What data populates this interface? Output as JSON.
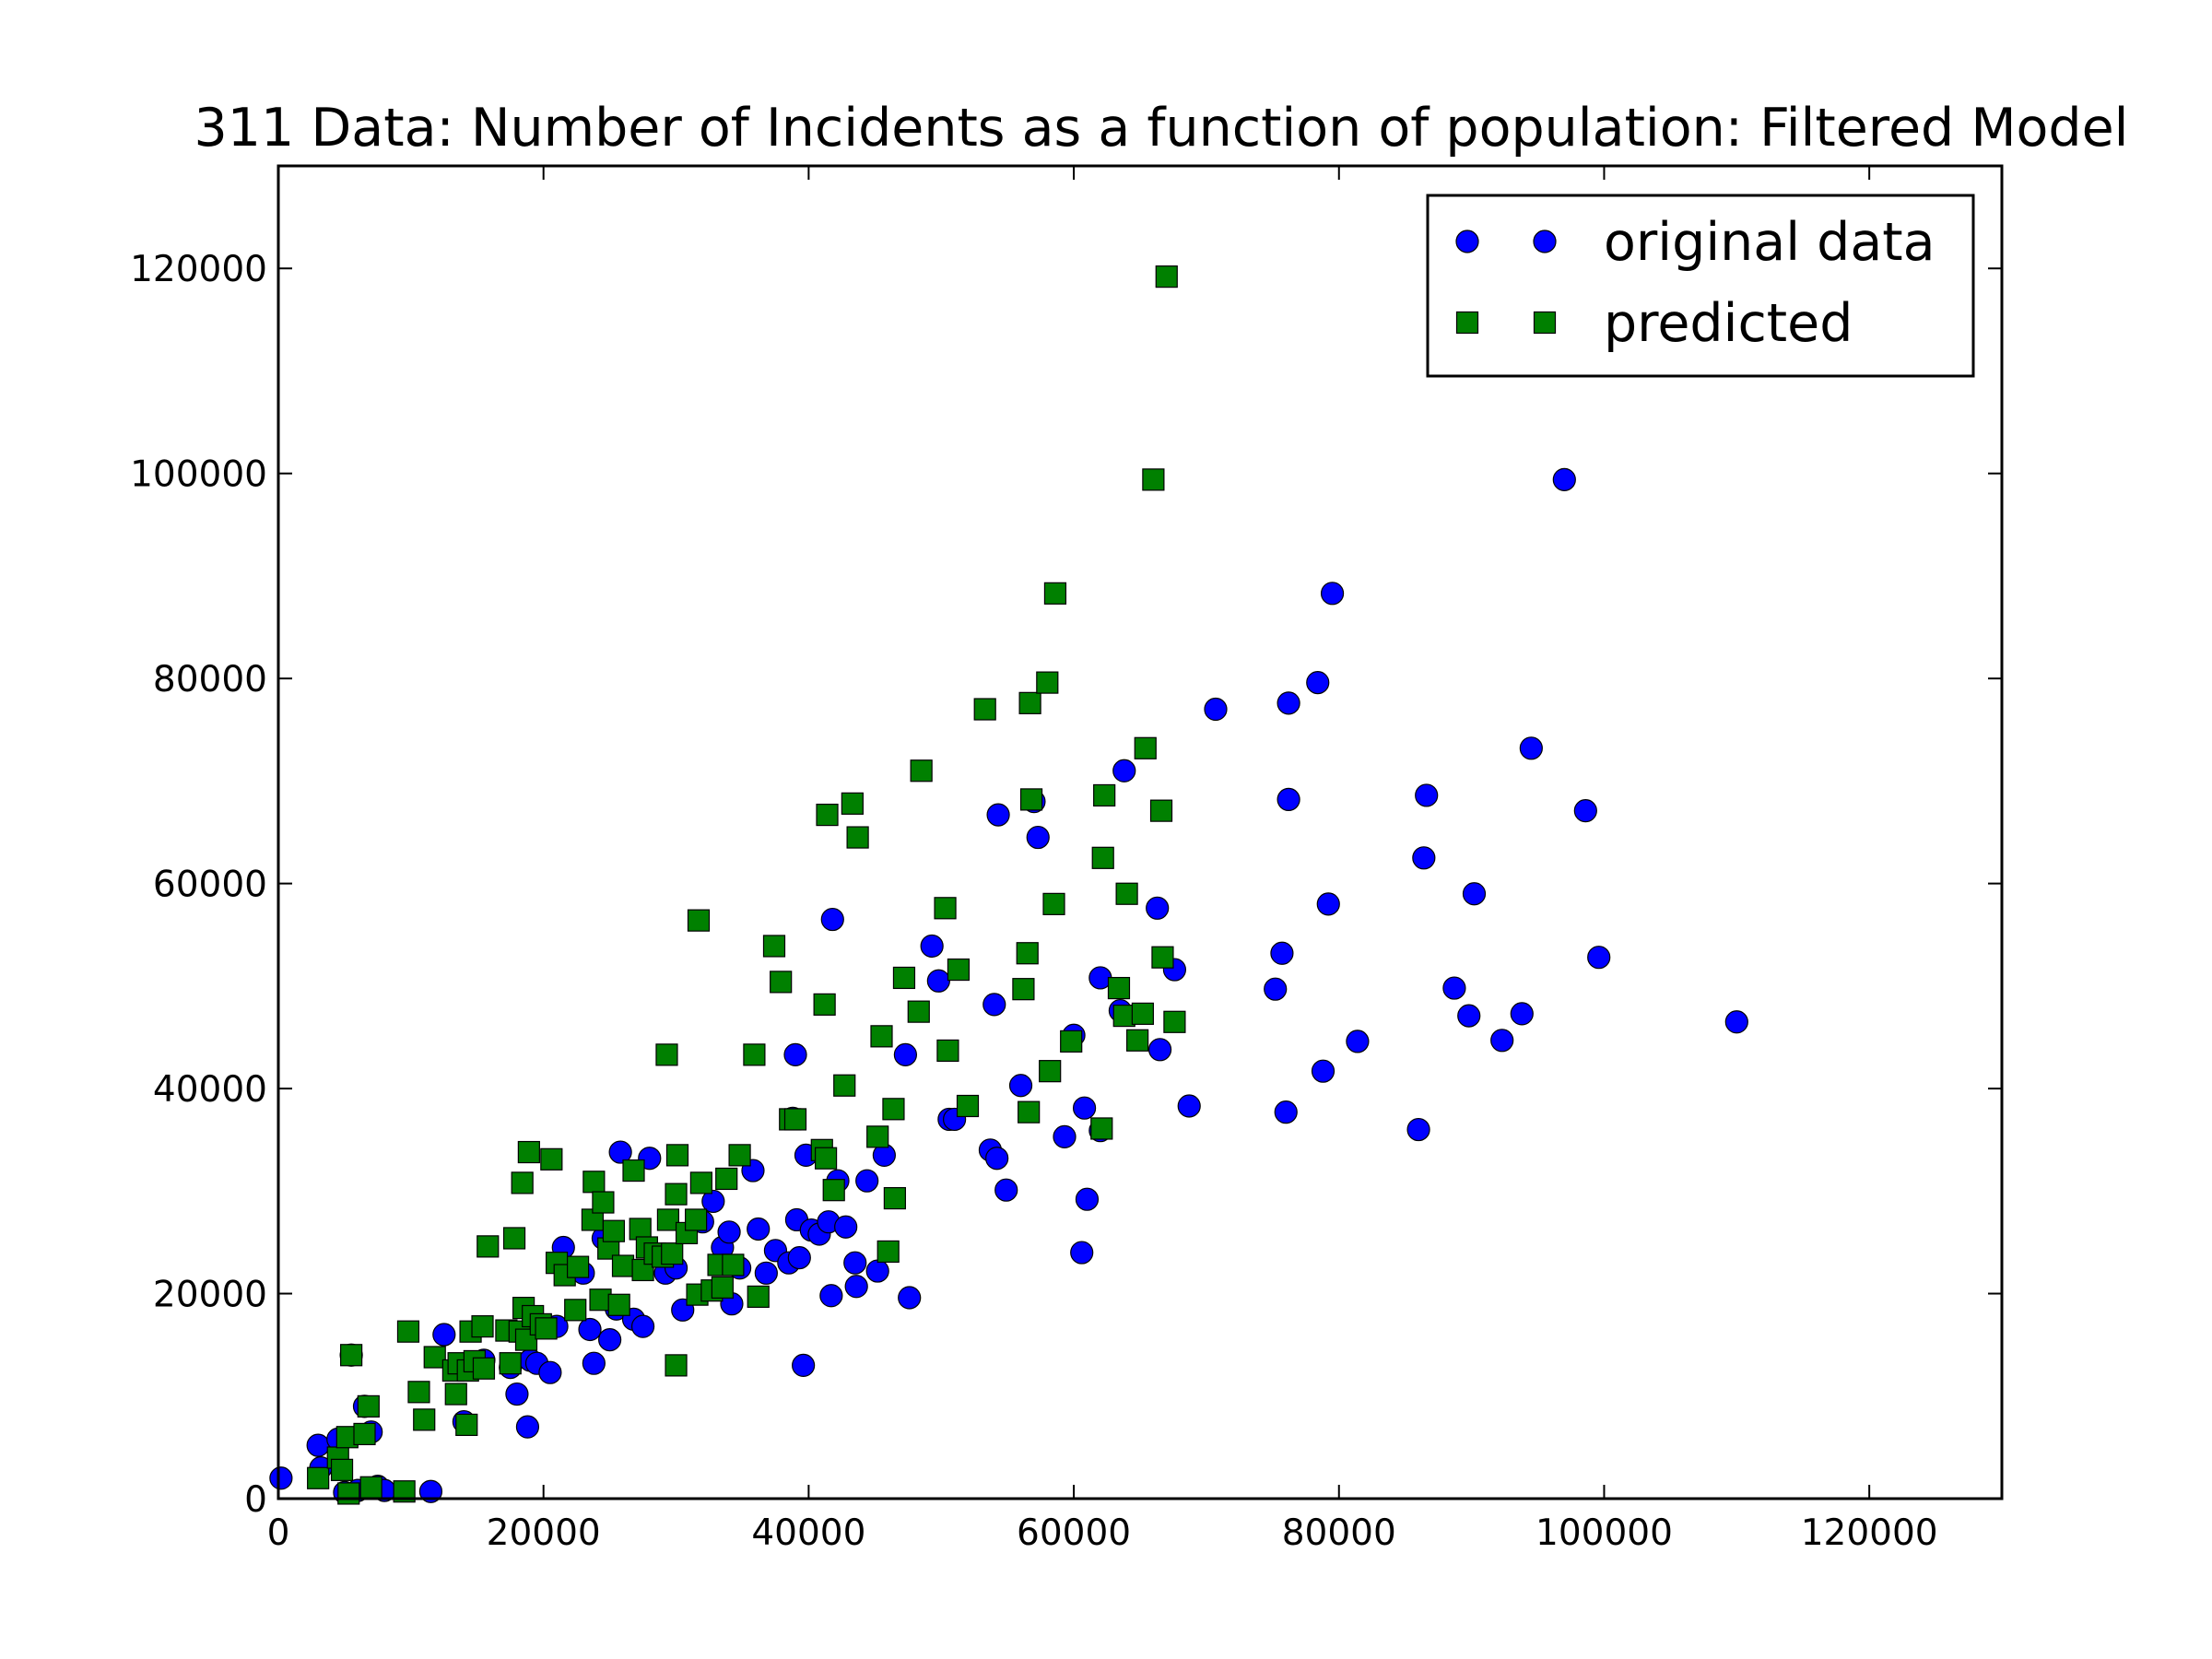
{
  "chart_data": {
    "type": "scatter",
    "title": "311 Data: Number of Incidents as a function of population: Filtered Model",
    "xlabel": "",
    "ylabel": "",
    "xlim": [
      0,
      130000
    ],
    "ylim": [
      0,
      130000
    ],
    "x_ticks": [
      0,
      20000,
      40000,
      60000,
      80000,
      100000,
      120000
    ],
    "y_ticks": [
      0,
      20000,
      40000,
      60000,
      80000,
      100000,
      120000
    ],
    "x_tick_labels": [
      "0",
      "20000",
      "40000",
      "60000",
      "80000",
      "100000",
      "120000"
    ],
    "y_tick_labels": [
      "0",
      "20000",
      "40000",
      "60000",
      "80000",
      "100000",
      "120000"
    ],
    "grid": false,
    "legend_position": "top-right",
    "series": [
      {
        "name": "original data",
        "marker": "circle",
        "color": "#0000ff",
        "points": [
          [
            200,
            2000
          ],
          [
            3000,
            5200
          ],
          [
            3200,
            3000
          ],
          [
            4500,
            5800
          ],
          [
            5000,
            600
          ],
          [
            5500,
            14000
          ],
          [
            6000,
            800
          ],
          [
            6500,
            9000
          ],
          [
            7000,
            6500
          ],
          [
            7500,
            1200
          ],
          [
            8000,
            800
          ],
          [
            11500,
            700
          ],
          [
            12500,
            16000
          ],
          [
            14000,
            7500
          ],
          [
            15500,
            13500
          ],
          [
            17500,
            12800
          ],
          [
            18000,
            10200
          ],
          [
            18800,
            7000
          ],
          [
            19000,
            13500
          ],
          [
            19500,
            13200
          ],
          [
            20500,
            12300
          ],
          [
            21000,
            16800
          ],
          [
            21500,
            24500
          ],
          [
            23000,
            22000
          ],
          [
            23500,
            16500
          ],
          [
            23800,
            13200
          ],
          [
            24500,
            25400
          ],
          [
            25000,
            15500
          ],
          [
            25500,
            18500
          ],
          [
            25800,
            33800
          ],
          [
            26800,
            17500
          ],
          [
            27500,
            16800
          ],
          [
            28000,
            33200
          ],
          [
            29200,
            22000
          ],
          [
            30000,
            22500
          ],
          [
            30500,
            18400
          ],
          [
            32000,
            27000
          ],
          [
            32800,
            29000
          ],
          [
            33500,
            24500
          ],
          [
            34000,
            26000
          ],
          [
            34200,
            19000
          ],
          [
            34800,
            22500
          ],
          [
            35800,
            32000
          ],
          [
            36200,
            26300
          ],
          [
            36800,
            22000
          ],
          [
            37500,
            24200
          ],
          [
            38500,
            23000
          ],
          [
            38800,
            37100
          ],
          [
            39000,
            43300
          ],
          [
            39100,
            27200
          ],
          [
            39300,
            23500
          ],
          [
            39600,
            13000
          ],
          [
            39800,
            33500
          ],
          [
            40200,
            26200
          ],
          [
            40800,
            25800
          ],
          [
            41500,
            27000
          ],
          [
            41700,
            19800
          ],
          [
            41800,
            56500
          ],
          [
            42200,
            31000
          ],
          [
            42800,
            26500
          ],
          [
            43500,
            23000
          ],
          [
            43600,
            20700
          ],
          [
            44400,
            31000
          ],
          [
            45200,
            22200
          ],
          [
            45700,
            33500
          ],
          [
            47300,
            43300
          ],
          [
            47600,
            19600
          ],
          [
            49300,
            53900
          ],
          [
            49800,
            50500
          ],
          [
            50600,
            37000
          ],
          [
            51000,
            37000
          ],
          [
            53700,
            34000
          ],
          [
            54000,
            48200
          ],
          [
            54200,
            33200
          ],
          [
            54300,
            66700
          ],
          [
            54900,
            30100
          ],
          [
            56000,
            40300
          ],
          [
            57000,
            68000
          ],
          [
            57300,
            64500
          ],
          [
            59300,
            35300
          ],
          [
            60000,
            45200
          ],
          [
            60600,
            24000
          ],
          [
            60800,
            38100
          ],
          [
            61000,
            29200
          ],
          [
            62000,
            50800
          ],
          [
            62000,
            35900
          ],
          [
            63500,
            47600
          ],
          [
            63800,
            71000
          ],
          [
            66300,
            57600
          ],
          [
            66500,
            43800
          ],
          [
            67600,
            51600
          ],
          [
            68700,
            38300
          ],
          [
            70700,
            77000
          ],
          [
            75200,
            49700
          ],
          [
            75700,
            53200
          ],
          [
            76000,
            37700
          ],
          [
            76200,
            77600
          ],
          [
            76200,
            68200
          ],
          [
            78400,
            79600
          ],
          [
            78800,
            41700
          ],
          [
            79200,
            58000
          ],
          [
            79500,
            88300
          ],
          [
            81400,
            44600
          ],
          [
            86000,
            36000
          ],
          [
            86400,
            62500
          ],
          [
            86600,
            68600
          ],
          [
            88700,
            49800
          ],
          [
            89800,
            47100
          ],
          [
            90200,
            59000
          ],
          [
            92300,
            44700
          ],
          [
            93800,
            47300
          ],
          [
            94500,
            73200
          ],
          [
            97000,
            99400
          ],
          [
            98600,
            67100
          ],
          [
            99600,
            52800
          ],
          [
            110000,
            46500
          ]
        ]
      },
      {
        "name": "predicted",
        "marker": "square",
        "color": "#008000",
        "points": [
          [
            3000,
            2000
          ],
          [
            4500,
            4000
          ],
          [
            4800,
            2800
          ],
          [
            5200,
            6000
          ],
          [
            5300,
            500
          ],
          [
            5500,
            14000
          ],
          [
            6500,
            6300
          ],
          [
            6800,
            9000
          ],
          [
            7000,
            1100
          ],
          [
            9500,
            700
          ],
          [
            9800,
            16300
          ],
          [
            10600,
            10400
          ],
          [
            11000,
            7700
          ],
          [
            11800,
            13800
          ],
          [
            13200,
            12500
          ],
          [
            13400,
            10200
          ],
          [
            13600,
            13200
          ],
          [
            14200,
            7200
          ],
          [
            14300,
            12500
          ],
          [
            14500,
            16300
          ],
          [
            14800,
            13400
          ],
          [
            15400,
            16800
          ],
          [
            15500,
            12700
          ],
          [
            15800,
            24600
          ],
          [
            17200,
            16400
          ],
          [
            17500,
            13200
          ],
          [
            17800,
            25400
          ],
          [
            18200,
            16300
          ],
          [
            18400,
            30800
          ],
          [
            18500,
            18600
          ],
          [
            18700,
            15500
          ],
          [
            18900,
            33800
          ],
          [
            19200,
            17800
          ],
          [
            19800,
            17000
          ],
          [
            20200,
            16600
          ],
          [
            20600,
            33100
          ],
          [
            21000,
            23000
          ],
          [
            21600,
            21800
          ],
          [
            22400,
            18400
          ],
          [
            22600,
            22600
          ],
          [
            23700,
            27200
          ],
          [
            23800,
            30900
          ],
          [
            24300,
            19400
          ],
          [
            24500,
            28900
          ],
          [
            24900,
            24400
          ],
          [
            25300,
            26100
          ],
          [
            25700,
            18900
          ],
          [
            26000,
            22700
          ],
          [
            26800,
            32000
          ],
          [
            27300,
            26300
          ],
          [
            27500,
            22300
          ],
          [
            27800,
            24500
          ],
          [
            28400,
            23900
          ],
          [
            29000,
            23600
          ],
          [
            29300,
            43300
          ],
          [
            29400,
            27200
          ],
          [
            29700,
            23900
          ],
          [
            30000,
            29700
          ],
          [
            30000,
            13000
          ],
          [
            30100,
            33500
          ],
          [
            30800,
            25900
          ],
          [
            31500,
            27200
          ],
          [
            31600,
            19900
          ],
          [
            31700,
            56400
          ],
          [
            31900,
            30800
          ],
          [
            32700,
            20300
          ],
          [
            33200,
            22800
          ],
          [
            33500,
            20600
          ],
          [
            33800,
            31200
          ],
          [
            34300,
            22800
          ],
          [
            34800,
            33500
          ],
          [
            35900,
            43300
          ],
          [
            36200,
            19700
          ],
          [
            37400,
            53900
          ],
          [
            37900,
            50400
          ],
          [
            38600,
            37000
          ],
          [
            39000,
            37000
          ],
          [
            41000,
            34000
          ],
          [
            41200,
            48200
          ],
          [
            41300,
            33200
          ],
          [
            41400,
            66700
          ],
          [
            41900,
            30100
          ],
          [
            42700,
            40300
          ],
          [
            43300,
            67800
          ],
          [
            43700,
            64500
          ],
          [
            45200,
            35300
          ],
          [
            45500,
            45100
          ],
          [
            46000,
            24100
          ],
          [
            46400,
            38000
          ],
          [
            46500,
            29300
          ],
          [
            47200,
            50800
          ],
          [
            48300,
            47500
          ],
          [
            48500,
            71000
          ],
          [
            50300,
            57600
          ],
          [
            50500,
            43700
          ],
          [
            51300,
            51600
          ],
          [
            52000,
            38300
          ],
          [
            53300,
            77000
          ],
          [
            56200,
            49700
          ],
          [
            56500,
            53200
          ],
          [
            56600,
            37700
          ],
          [
            56700,
            77600
          ],
          [
            56800,
            68200
          ],
          [
            58000,
            79600
          ],
          [
            58200,
            41700
          ],
          [
            58500,
            58000
          ],
          [
            58600,
            88300
          ],
          [
            59800,
            44600
          ],
          [
            62100,
            36100
          ],
          [
            62200,
            62500
          ],
          [
            62300,
            68600
          ],
          [
            63400,
            49800
          ],
          [
            63800,
            47100
          ],
          [
            64000,
            59000
          ],
          [
            64800,
            44700
          ],
          [
            65200,
            47300
          ],
          [
            65400,
            73200
          ],
          [
            66000,
            99400
          ],
          [
            66600,
            67100
          ],
          [
            66700,
            52800
          ],
          [
            67000,
            119200
          ],
          [
            67600,
            46500
          ]
        ]
      }
    ]
  }
}
